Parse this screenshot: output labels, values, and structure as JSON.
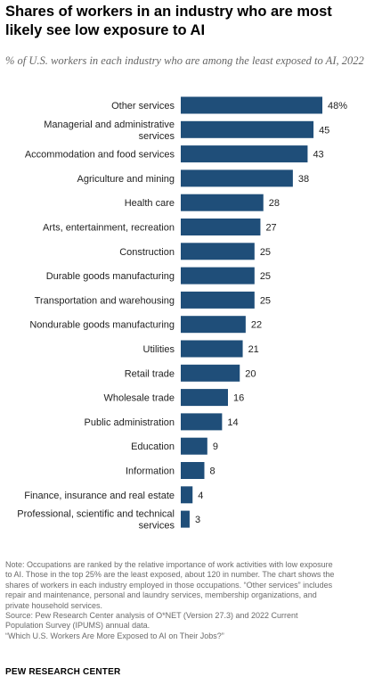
{
  "title": "Shares of workers in an industry who are most likely see low exposure to AI",
  "subtitle": "% of U.S. workers in each industry who are among the least exposed to AI, 2022",
  "chart_data": {
    "type": "bar",
    "orientation": "horizontal",
    "categories": [
      [
        "Other services"
      ],
      [
        "Managerial and administrative",
        "services"
      ],
      [
        "Accommodation and food services"
      ],
      [
        "Agriculture and mining"
      ],
      [
        "Health care"
      ],
      [
        "Arts, entertainment, recreation"
      ],
      [
        "Construction"
      ],
      [
        "Durable goods manufacturing"
      ],
      [
        "Transportation and warehousing"
      ],
      [
        "Nondurable goods manufacturing"
      ],
      [
        "Utilities"
      ],
      [
        "Retail trade"
      ],
      [
        "Wholesale trade"
      ],
      [
        "Public administration"
      ],
      [
        "Education"
      ],
      [
        "Information"
      ],
      [
        "Finance, insurance and real estate"
      ],
      [
        "Professional, scientific and technical",
        "services"
      ]
    ],
    "values": [
      48,
      45,
      43,
      38,
      28,
      27,
      25,
      25,
      25,
      22,
      21,
      20,
      16,
      14,
      9,
      8,
      4,
      3
    ],
    "value_labels": [
      "48%",
      "45",
      "43",
      "38",
      "28",
      "27",
      "25",
      "25",
      "25",
      "22",
      "21",
      "20",
      "16",
      "14",
      "9",
      "8",
      "4",
      "3"
    ],
    "bar_color": "#1f4e79",
    "xlim": [
      0,
      48
    ],
    "grid": false,
    "legend": "none"
  },
  "notes": [
    "Note: Occupations are ranked by the relative importance of work activities with low exposure",
    "to AI. Those in the top 25% are the least exposed, about 120 in number. The chart shows the",
    "shares of workers in each industry employed in those occupations. “Other services” includes",
    "repair and maintenance, personal and laundry services, membership organizations, and",
    "private household services.",
    "Source: Pew Research Center analysis of O*NET (Version 27.3) and 2022 Current",
    "Population Survey (IPUMS) annual data.",
    "“Which U.S. Workers Are More Exposed to AI on Their Jobs?”"
  ],
  "brand": "PEW RESEARCH CENTER"
}
